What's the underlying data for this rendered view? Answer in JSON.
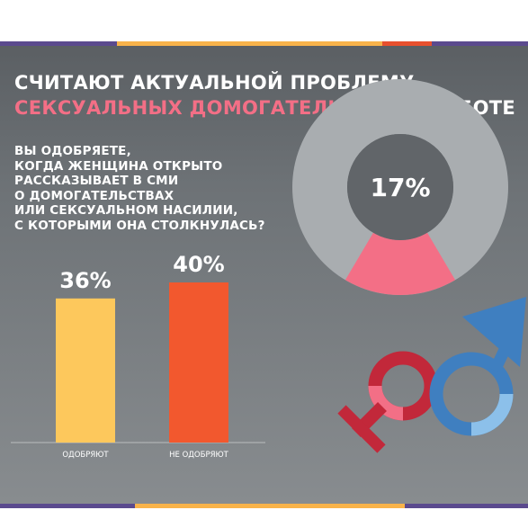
{
  "title": {
    "line1": "СЧИТАЮТ АКТУАЛЬНОЙ ПРОБЛЕМУ",
    "line2_highlight": "СЕКСУАЛЬНЫХ ДОМОГАТЕЛЬСТВ",
    "line2_rest": "НА РАБОТЕ"
  },
  "question_lines": [
    "ВЫ ОДОБРЯЕТЕ,",
    "КОГДА ЖЕНЩИНА ОТКРЫТО",
    "РАССКАЗЫВАЕТ В СМИ",
    "О ДОМОГАТЕЛЬСТВАХ",
    "ИЛИ СЕКСУАЛЬНОМ НАСИЛИИ,",
    "С КОТОРЫМИ ОНА СТОЛКНУЛАСЬ?"
  ],
  "colors": {
    "pink": "#f36f86",
    "donut_track": "#a9adb0",
    "bar_approve": "#fdc85c",
    "bar_disapprove": "#f2582e",
    "female_symbol": "#c2283a",
    "male_symbol": "#3f7fc0"
  },
  "chart_data": [
    {
      "type": "pie",
      "variant": "donut",
      "values": [
        17
      ],
      "data_labels": [
        "17%"
      ],
      "title": ""
    },
    {
      "type": "bar",
      "categories": [
        "ОДОБРЯЮТ",
        "НЕ ОДОБРЯЮТ"
      ],
      "values": [
        36,
        40
      ],
      "data_labels": [
        "36%",
        "40%"
      ],
      "colors": [
        "#fdc85c",
        "#f2582e"
      ],
      "title": "",
      "xlabel": "",
      "ylabel": "",
      "ylim": [
        0,
        100
      ],
      "grid": false
    }
  ],
  "icons": [
    "female-symbol-icon",
    "male-symbol-icon"
  ]
}
